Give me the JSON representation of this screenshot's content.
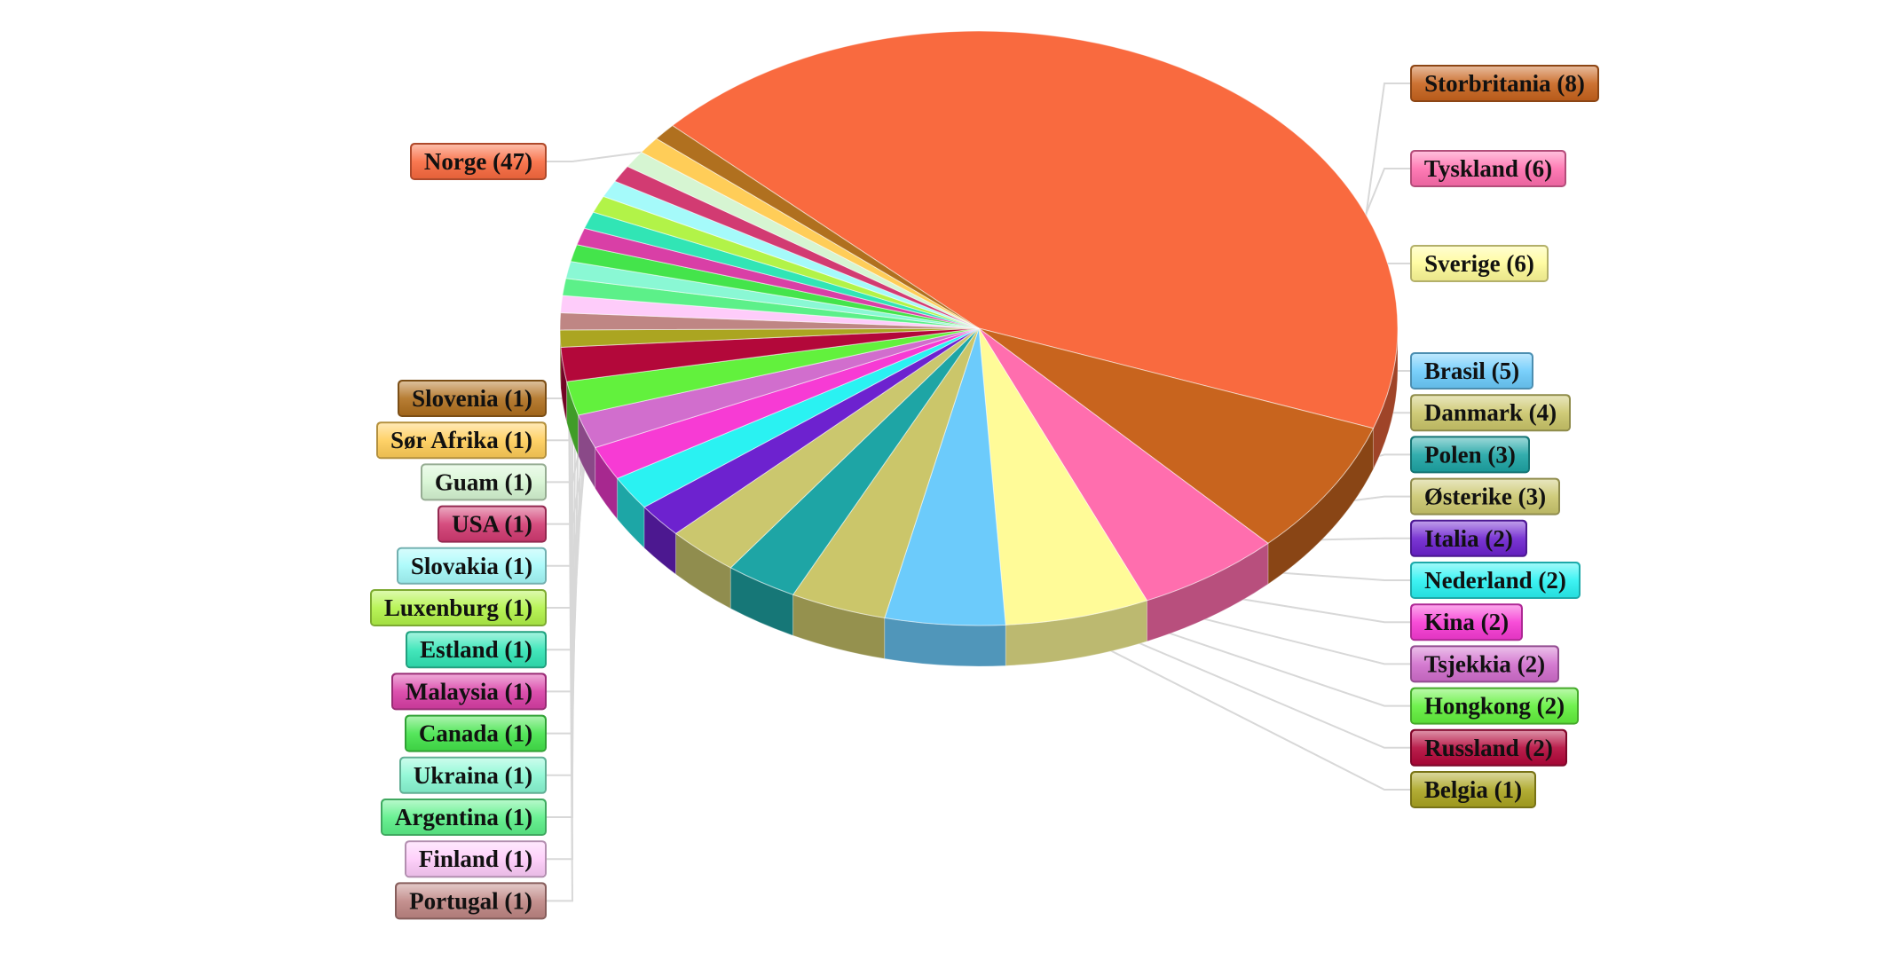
{
  "chart_data": {
    "type": "pie",
    "style": "3d-exploded-labels",
    "title": "",
    "slices": [
      {
        "label": "Norge",
        "value": 47,
        "color": "#F96A3F"
      },
      {
        "label": "Storbritania",
        "value": 8,
        "color": "#C8641E"
      },
      {
        "label": "Tyskland",
        "value": 6,
        "color": "#FF6EAE"
      },
      {
        "label": "Sverige",
        "value": 6,
        "color": "#FFFB98"
      },
      {
        "label": "Brasil",
        "value": 5,
        "color": "#6CCBFB"
      },
      {
        "label": "Danmark",
        "value": 4,
        "color": "#CBC66A"
      },
      {
        "label": "Polen",
        "value": 3,
        "color": "#1EA5A5"
      },
      {
        "label": "Østerike",
        "value": 3,
        "color": "#CBC76E"
      },
      {
        "label": "Italia",
        "value": 2,
        "color": "#6D22CF"
      },
      {
        "label": "Nederland",
        "value": 2,
        "color": "#2AF2F2"
      },
      {
        "label": "Kina",
        "value": 2,
        "color": "#F73BD4"
      },
      {
        "label": "Tsjekkia",
        "value": 2,
        "color": "#D16ECD"
      },
      {
        "label": "Hongkong",
        "value": 2,
        "color": "#62F13D"
      },
      {
        "label": "Russland",
        "value": 2,
        "color": "#B3083A"
      },
      {
        "label": "Belgia",
        "value": 1,
        "color": "#ABA521"
      },
      {
        "label": "Portugal",
        "value": 1,
        "color": "#BF8684"
      },
      {
        "label": "Finland",
        "value": 1,
        "color": "#FECCFA"
      },
      {
        "label": "Argentina",
        "value": 1,
        "color": "#5CF089"
      },
      {
        "label": "Ukraina",
        "value": 1,
        "color": "#8AF8D4"
      },
      {
        "label": "Canada",
        "value": 1,
        "color": "#44E44B"
      },
      {
        "label": "Malaysia",
        "value": 1,
        "color": "#D93FA6"
      },
      {
        "label": "Estland",
        "value": 1,
        "color": "#31E5B5"
      },
      {
        "label": "Luxenburg",
        "value": 1,
        "color": "#B2F348"
      },
      {
        "label": "Slovakia",
        "value": 1,
        "color": "#A5FAFA"
      },
      {
        "label": "USA",
        "value": 1,
        "color": "#D23B72"
      },
      {
        "label": "Guam",
        "value": 1,
        "color": "#D6F5D2"
      },
      {
        "label": "Sør Afrika",
        "value": 1,
        "color": "#FFCD58"
      },
      {
        "label": "Slovenia",
        "value": 1,
        "color": "#B0701F"
      }
    ],
    "label_format": "{label} ({value})",
    "legend": "none"
  }
}
